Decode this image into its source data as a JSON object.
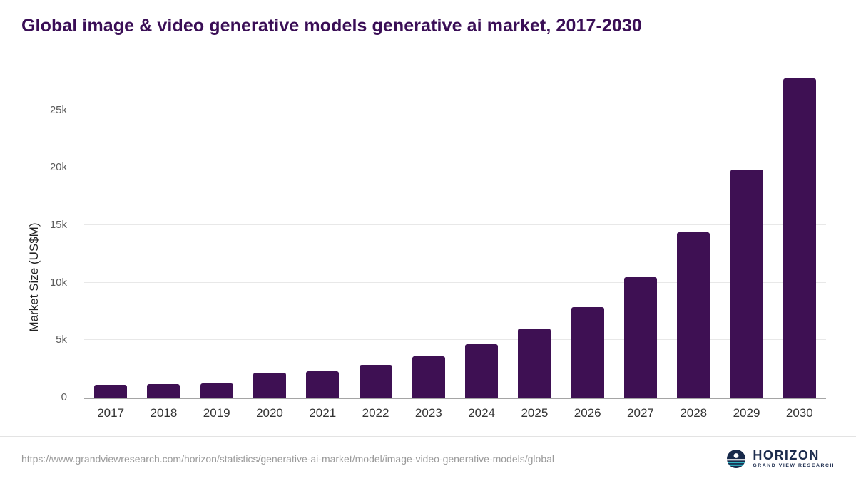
{
  "title": "Global image & video generative models generative ai market, 2017-2030",
  "colors": {
    "bar": "#3e1053",
    "title": "#3a0e56",
    "axis": "#a5a5a5",
    "grid": "#e8e8e8",
    "logo_navy": "#17294a",
    "logo_teal": "#2fb4c4"
  },
  "chart_data": {
    "type": "bar",
    "title": "Global image & video generative models generative ai market, 2017-2030",
    "categories": [
      "2017",
      "2018",
      "2019",
      "2020",
      "2021",
      "2022",
      "2023",
      "2024",
      "2025",
      "2026",
      "2027",
      "2028",
      "2029",
      "2030"
    ],
    "values": [
      1100,
      1150,
      1250,
      2150,
      2300,
      2850,
      3600,
      4650,
      6000,
      7900,
      10500,
      14400,
      19850,
      27800
    ],
    "xlabel": "",
    "ylabel": "Market Size (US$M)",
    "ylim": [
      0,
      28400
    ],
    "yticks": [
      {
        "value": 0,
        "label": "0"
      },
      {
        "value": 5000,
        "label": "5k"
      },
      {
        "value": 10000,
        "label": "10k"
      },
      {
        "value": 15000,
        "label": "15k"
      },
      {
        "value": 20000,
        "label": "20k"
      },
      {
        "value": 25000,
        "label": "25k"
      }
    ],
    "grid": true,
    "legend": false
  },
  "footer": {
    "source_url": "https://www.grandviewresearch.com/horizon/statistics/generative-ai-market/model/image-video-generative-models/global",
    "brand": {
      "name": "HORIZON",
      "subtitle": "GRAND VIEW RESEARCH"
    }
  }
}
